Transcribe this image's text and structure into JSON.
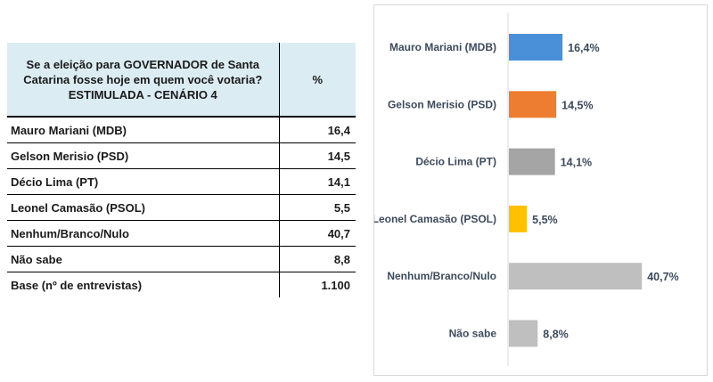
{
  "table": {
    "question": "Se a eleição para GOVERNADOR de Santa Catarina fosse hoje em quem você votaria? ESTIMULADA - CENÁRIO 4",
    "pct_header": "%",
    "rows": [
      {
        "name": "Mauro Mariani (MDB)",
        "value": "16,4"
      },
      {
        "name": "Gelson Merisio (PSD)",
        "value": "14,5"
      },
      {
        "name": "Décio Lima (PT)",
        "value": "14,1"
      },
      {
        "name": "Leonel Camasão (PSOL)",
        "value": "5,5"
      },
      {
        "name": "Nenhum/Branco/Nulo",
        "value": "40,7"
      },
      {
        "name": "Não sabe",
        "value": "8,8"
      },
      {
        "name": "Base (nº de entrevistas)",
        "value": "1.100"
      }
    ]
  },
  "chart_data": {
    "type": "bar",
    "orientation": "horizontal",
    "title": "",
    "xlabel": "",
    "ylabel": "",
    "xlim": [
      0,
      45
    ],
    "grid": false,
    "legend": "none",
    "categories": [
      "Mauro Mariani (MDB)",
      "Gelson Merisio (PSD)",
      "Décio Lima (PT)",
      "Leonel Camasão (PSOL)",
      "Nenhum/Branco/Nulo",
      "Não sabe"
    ],
    "values": [
      16.4,
      14.5,
      14.1,
      5.5,
      40.7,
      8.8
    ],
    "value_labels": [
      "16,4%",
      "14,5%",
      "14,1%",
      "5,5%",
      "40,7%",
      "8,8%"
    ],
    "colors": [
      "#4a90d9",
      "#ed7d31",
      "#a5a5a5",
      "#ffc000",
      "#bfbfbf",
      "#bfbfbf"
    ]
  }
}
